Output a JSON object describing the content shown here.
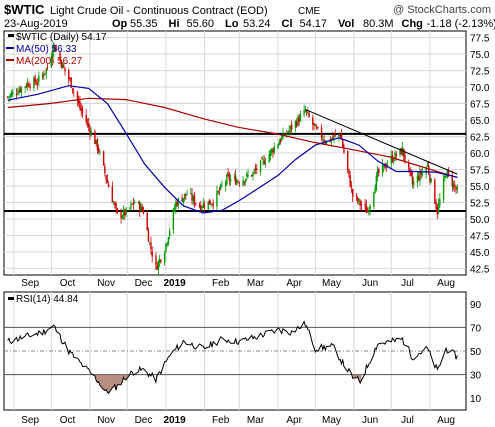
{
  "header": {
    "symbol": "$WTIC",
    "description": "Light Crude Oil - Continuous Contract (EOD)",
    "exchange": "CME",
    "watermark": "@ StockCharts.com",
    "date": "23-Aug-2019",
    "quote": [
      {
        "label": "Op",
        "value": "55.35"
      },
      {
        "label": "Hi",
        "value": "55.60"
      },
      {
        "label": "Lo",
        "value": "53.24"
      },
      {
        "label": "Cl",
        "value": "54.17"
      },
      {
        "label": "Vol",
        "value": "80.3M"
      },
      {
        "label": "Chg",
        "value": "-1.18 (-2.13%)"
      }
    ],
    "chg_arrow": "down-arrow",
    "colors": {
      "down": "#cc0000",
      "up": "#009900"
    }
  },
  "legend": [
    {
      "text": "$WTIC (Daily) 54.17",
      "color": "#000000"
    },
    {
      "text": "MA(50) 56.33",
      "color": "#0000aa"
    },
    {
      "text": "MA(200) 56.27",
      "color": "#aa0000"
    }
  ],
  "rsi_legend": "RSI(14) 44.84",
  "chart_data": [
    {
      "type": "candlestick",
      "series": [
        {
          "name": "$WTIC (Daily) 54.17",
          "color_up": "#009900",
          "color_down": "#cc0000"
        },
        {
          "name": "MA(50) 56.33",
          "color": "#0000aa"
        },
        {
          "name": "MA(200) 56.27",
          "color": "#aa0000"
        }
      ],
      "x_tick_labels": [
        "Sep",
        "Oct",
        "Nov",
        "Dec",
        "2019",
        "Feb",
        "Mar",
        "Apr",
        "May",
        "Jun",
        "Jul",
        "Aug"
      ],
      "y_tick_labels": [
        "42.5",
        "45.0",
        "47.5",
        "50.0",
        "52.5",
        "55.0",
        "57.5",
        "60.0",
        "62.5",
        "65.0",
        "67.5",
        "70.0",
        "72.5",
        "75.0",
        "77.5"
      ],
      "ylim": [
        41.5,
        78.5
      ],
      "grid": true,
      "legend_position": "top-left",
      "close_points": [
        {
          "x": "2018-08-27",
          "y": 68.5
        },
        {
          "x": "2018-09-04",
          "y": 69.5
        },
        {
          "x": "2018-09-12",
          "y": 70.5
        },
        {
          "x": "2018-09-20",
          "y": 70.8
        },
        {
          "x": "2018-09-28",
          "y": 73.0
        },
        {
          "x": "2018-10-03",
          "y": 76.4
        },
        {
          "x": "2018-10-10",
          "y": 73.2
        },
        {
          "x": "2018-10-17",
          "y": 70.5
        },
        {
          "x": "2018-10-24",
          "y": 66.8
        },
        {
          "x": "2018-11-01",
          "y": 63.5
        },
        {
          "x": "2018-11-08",
          "y": 60.5
        },
        {
          "x": "2018-11-14",
          "y": 56.2
        },
        {
          "x": "2018-11-23",
          "y": 50.5
        },
        {
          "x": "2018-11-30",
          "y": 50.9
        },
        {
          "x": "2018-12-07",
          "y": 52.6
        },
        {
          "x": "2018-12-14",
          "y": 51.2
        },
        {
          "x": "2018-12-19",
          "y": 46.2
        },
        {
          "x": "2018-12-24",
          "y": 42.6
        },
        {
          "x": "2018-12-31",
          "y": 45.4
        },
        {
          "x": "2019-01-09",
          "y": 52.4
        },
        {
          "x": "2019-01-18",
          "y": 53.8
        },
        {
          "x": "2019-01-28",
          "y": 52.0
        },
        {
          "x": "2019-02-08",
          "y": 52.7
        },
        {
          "x": "2019-02-19",
          "y": 56.1
        },
        {
          "x": "2019-03-01",
          "y": 55.8
        },
        {
          "x": "2019-03-12",
          "y": 56.9
        },
        {
          "x": "2019-03-22",
          "y": 59.1
        },
        {
          "x": "2019-04-01",
          "y": 61.6
        },
        {
          "x": "2019-04-12",
          "y": 63.9
        },
        {
          "x": "2019-04-23",
          "y": 66.3
        },
        {
          "x": "2019-05-01",
          "y": 63.6
        },
        {
          "x": "2019-05-10",
          "y": 61.7
        },
        {
          "x": "2019-05-21",
          "y": 62.9
        },
        {
          "x": "2019-05-31",
          "y": 53.5
        },
        {
          "x": "2019-06-12",
          "y": 51.1
        },
        {
          "x": "2019-06-20",
          "y": 56.7
        },
        {
          "x": "2019-07-01",
          "y": 59.1
        },
        {
          "x": "2019-07-10",
          "y": 60.4
        },
        {
          "x": "2019-07-18",
          "y": 55.3
        },
        {
          "x": "2019-07-30",
          "y": 58.1
        },
        {
          "x": "2019-08-07",
          "y": 51.1
        },
        {
          "x": "2019-08-14",
          "y": 57.1
        },
        {
          "x": "2019-08-23",
          "y": 54.17
        }
      ],
      "ma50_points": [
        {
          "x": "2018-08-27",
          "y": 68.0
        },
        {
          "x": "2018-09-20",
          "y": 68.9
        },
        {
          "x": "2018-10-15",
          "y": 70.2
        },
        {
          "x": "2018-10-31",
          "y": 69.8
        },
        {
          "x": "2018-11-15",
          "y": 67.5
        },
        {
          "x": "2018-11-30",
          "y": 63.0
        },
        {
          "x": "2018-12-15",
          "y": 58.3
        },
        {
          "x": "2018-12-31",
          "y": 54.8
        },
        {
          "x": "2019-01-15",
          "y": 52.0
        },
        {
          "x": "2019-01-31",
          "y": 50.9
        },
        {
          "x": "2019-02-15",
          "y": 51.3
        },
        {
          "x": "2019-03-01",
          "y": 52.8
        },
        {
          "x": "2019-03-15",
          "y": 54.5
        },
        {
          "x": "2019-04-01",
          "y": 56.6
        },
        {
          "x": "2019-04-15",
          "y": 59.0
        },
        {
          "x": "2019-05-01",
          "y": 61.2
        },
        {
          "x": "2019-05-20",
          "y": 62.3
        },
        {
          "x": "2019-06-05",
          "y": 61.2
        },
        {
          "x": "2019-06-20",
          "y": 58.8
        },
        {
          "x": "2019-07-05",
          "y": 57.2
        },
        {
          "x": "2019-07-20",
          "y": 57.2
        },
        {
          "x": "2019-08-05",
          "y": 57.1
        },
        {
          "x": "2019-08-23",
          "y": 56.33
        }
      ],
      "ma200_points": [
        {
          "x": "2018-08-27",
          "y": 66.9
        },
        {
          "x": "2018-09-30",
          "y": 67.5
        },
        {
          "x": "2018-10-31",
          "y": 68.3
        },
        {
          "x": "2018-11-30",
          "y": 68.1
        },
        {
          "x": "2018-12-31",
          "y": 66.9
        },
        {
          "x": "2019-01-31",
          "y": 65.2
        },
        {
          "x": "2019-02-28",
          "y": 63.9
        },
        {
          "x": "2019-03-31",
          "y": 62.9
        },
        {
          "x": "2019-04-30",
          "y": 61.6
        },
        {
          "x": "2019-05-31",
          "y": 60.5
        },
        {
          "x": "2019-06-30",
          "y": 59.4
        },
        {
          "x": "2019-07-31",
          "y": 57.6
        },
        {
          "x": "2019-08-23",
          "y": 56.27
        }
      ],
      "horizontal_lines": [
        62.9,
        51.2
      ],
      "trendline": [
        {
          "x": "2019-04-23",
          "y": 66.6
        },
        {
          "x": "2019-08-23",
          "y": 56.8
        }
      ]
    },
    {
      "type": "line",
      "series": [
        {
          "name": "RSI(14) 44.84",
          "color": "#000000"
        }
      ],
      "x_tick_labels": [
        "Sep",
        "Oct",
        "Nov",
        "Dec",
        "2019",
        "Feb",
        "Mar",
        "Apr",
        "May",
        "Jun",
        "Jul",
        "Aug"
      ],
      "y_tick_labels": [
        "90",
        "70",
        "50",
        "30",
        "10"
      ],
      "ylim": [
        0,
        100
      ],
      "levels": [
        70,
        50,
        30
      ],
      "points": [
        {
          "x": "2018-08-27",
          "y": 58
        },
        {
          "x": "2018-09-10",
          "y": 62
        },
        {
          "x": "2018-09-24",
          "y": 66
        },
        {
          "x": "2018-10-03",
          "y": 71
        },
        {
          "x": "2018-10-15",
          "y": 50
        },
        {
          "x": "2018-10-24",
          "y": 40
        },
        {
          "x": "2018-11-01",
          "y": 32
        },
        {
          "x": "2018-11-08",
          "y": 24
        },
        {
          "x": "2018-11-14",
          "y": 15
        },
        {
          "x": "2018-11-23",
          "y": 20
        },
        {
          "x": "2018-11-30",
          "y": 28
        },
        {
          "x": "2018-12-07",
          "y": 33
        },
        {
          "x": "2018-12-14",
          "y": 34
        },
        {
          "x": "2018-12-24",
          "y": 26
        },
        {
          "x": "2019-01-04",
          "y": 46
        },
        {
          "x": "2019-01-15",
          "y": 58
        },
        {
          "x": "2019-01-31",
          "y": 52
        },
        {
          "x": "2019-02-15",
          "y": 60
        },
        {
          "x": "2019-03-01",
          "y": 58
        },
        {
          "x": "2019-03-15",
          "y": 62
        },
        {
          "x": "2019-04-01",
          "y": 68
        },
        {
          "x": "2019-04-12",
          "y": 66
        },
        {
          "x": "2019-04-23",
          "y": 73
        },
        {
          "x": "2019-05-01",
          "y": 52
        },
        {
          "x": "2019-05-15",
          "y": 54
        },
        {
          "x": "2019-05-23",
          "y": 40
        },
        {
          "x": "2019-05-31",
          "y": 28
        },
        {
          "x": "2019-06-06",
          "y": 24
        },
        {
          "x": "2019-06-20",
          "y": 56
        },
        {
          "x": "2019-07-01",
          "y": 58
        },
        {
          "x": "2019-07-10",
          "y": 60
        },
        {
          "x": "2019-07-18",
          "y": 45
        },
        {
          "x": "2019-07-30",
          "y": 52
        },
        {
          "x": "2019-08-07",
          "y": 33
        },
        {
          "x": "2019-08-14",
          "y": 52
        },
        {
          "x": "2019-08-23",
          "y": 44.84
        }
      ]
    }
  ]
}
